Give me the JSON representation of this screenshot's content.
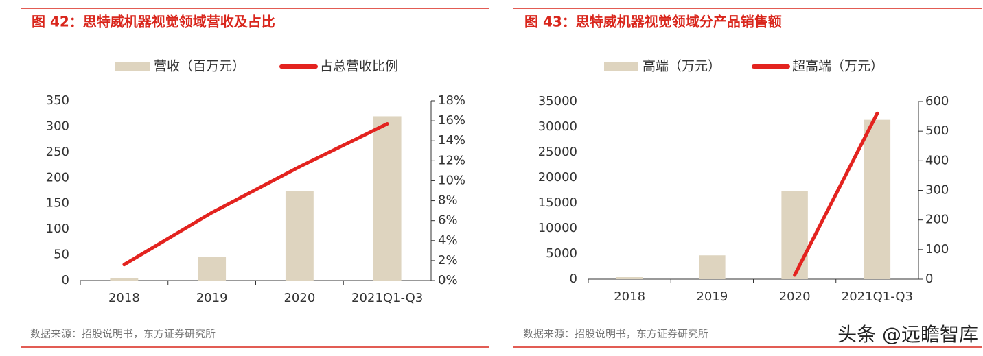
{
  "chart_data": [
    {
      "type": "bar",
      "title": "图 42：思特威机器视觉领域营收及占比",
      "categories": [
        "2018",
        "2019",
        "2020",
        "2021Q1-Q3"
      ],
      "series": [
        {
          "name": "营收（百万元）",
          "color": "#ded4bf",
          "type": "bar",
          "values": [
            5,
            46,
            174,
            320
          ]
        },
        {
          "name": "占总营收比例",
          "color": "#e3231f",
          "type": "line",
          "axis": "y2",
          "values": [
            1.6,
            6.8,
            11.4,
            15.7
          ]
        }
      ],
      "ylim": [
        0,
        350
      ],
      "yticks": [
        0,
        50,
        100,
        150,
        200,
        250,
        300,
        350
      ],
      "y2lim": [
        0,
        18
      ],
      "y2ticks": [
        {
          "value": 0,
          "label": "0%"
        },
        {
          "value": 2,
          "label": "2%"
        },
        {
          "value": 4,
          "label": "4%"
        },
        {
          "value": 6,
          "label": "6%"
        },
        {
          "value": 8,
          "label": "8%"
        },
        {
          "value": 10,
          "label": "10%"
        },
        {
          "value": 12,
          "label": "12%"
        },
        {
          "value": 14,
          "label": "14%"
        },
        {
          "value": 16,
          "label": "16%"
        },
        {
          "value": 18,
          "label": "18%"
        }
      ],
      "source": "数据来源：招股说明书，东方证券研究所"
    },
    {
      "type": "bar",
      "title": "图 43：思特威机器视觉领域分产品销售额",
      "categories": [
        "2018",
        "2019",
        "2020",
        "2021Q1-Q3"
      ],
      "series": [
        {
          "name": "高端（万元）",
          "color": "#ded4bf",
          "type": "bar",
          "values": [
            400,
            4700,
            17400,
            31400
          ]
        },
        {
          "name": "超高端（万元）",
          "color": "#e3231f",
          "type": "line",
          "axis": "y2",
          "values": [
            null,
            null,
            14,
            560
          ]
        }
      ],
      "ylim": [
        0,
        35000
      ],
      "yticks": [
        0,
        5000,
        10000,
        15000,
        20000,
        25000,
        30000,
        35000
      ],
      "y2lim": [
        0,
        600
      ],
      "y2ticks": [
        0,
        100,
        200,
        300,
        400,
        500,
        600
      ],
      "source": "数据来源：招股说明书，东方证券研究所"
    }
  ],
  "watermark": "头条 @远瞻智库"
}
